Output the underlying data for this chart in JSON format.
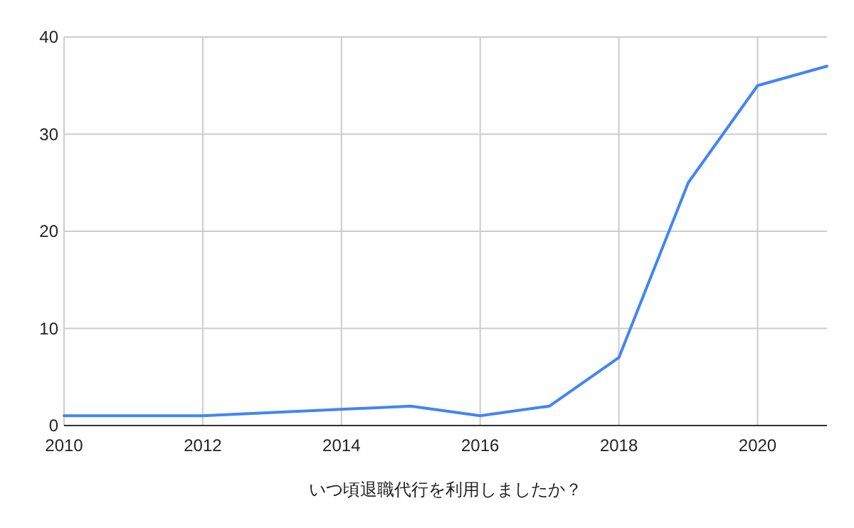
{
  "chart_data": {
    "type": "line",
    "xlabel": "いつ頃退職代行を利用しましたか？",
    "x": [
      2010,
      2012,
      2015,
      2016,
      2017,
      2018,
      2019,
      2020,
      2021
    ],
    "series": [
      {
        "color": "#4285f4",
        "values": [
          1,
          1,
          2,
          1,
          2,
          7,
          25,
          35,
          37
        ]
      }
    ],
    "xlim": [
      2010,
      2021
    ],
    "xticks": [
      2010,
      2012,
      2014,
      2016,
      2018,
      2020
    ],
    "ylim": [
      0,
      40
    ],
    "yticks": [
      0,
      10,
      20,
      30,
      40
    ],
    "grid": true,
    "marker": "none",
    "line_style": "solid"
  }
}
